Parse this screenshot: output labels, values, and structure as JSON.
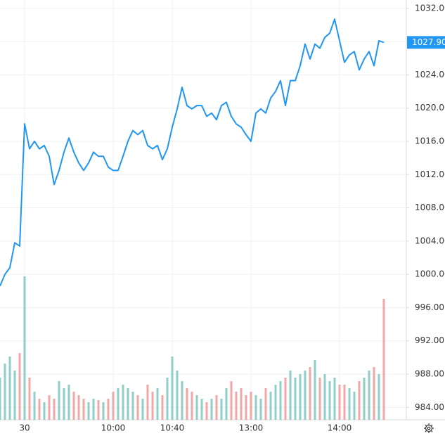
{
  "chart_data": {
    "type": "line",
    "categories": [
      null,
      null,
      null,
      null,
      null,
      "30",
      null,
      null,
      null,
      null,
      null,
      null,
      null,
      null,
      null,
      null,
      null,
      null,
      null,
      null,
      null,
      null,
      null,
      "10:00",
      null,
      null,
      null,
      null,
      null,
      null,
      null,
      null,
      null,
      null,
      null,
      "10:40",
      null,
      null,
      null,
      null,
      null,
      null,
      null,
      null,
      null,
      null,
      null,
      null,
      null,
      null,
      null,
      "13:00",
      null,
      null,
      null,
      null,
      null,
      null,
      null,
      null,
      null,
      null,
      null,
      null,
      null,
      null,
      null,
      null,
      null,
      "14:00",
      null,
      null,
      null,
      null,
      null,
      null,
      null,
      null,
      null
    ],
    "series": [
      {
        "color": "#2196f3",
        "values": [
          998.6,
          1000,
          1000.8,
          1003.8,
          1003.4,
          1018.1,
          1015.1,
          1016,
          1015.1,
          1015.5,
          1014.2,
          1010.8,
          1012.5,
          1014.7,
          1016.4,
          1014.7,
          1013.4,
          1012.5,
          1013.4,
          1014.7,
          1014.2,
          1014.2,
          1012.9,
          1012.5,
          1012.5,
          1014.2,
          1016,
          1017.3,
          1016.8,
          1017.3,
          1015.5,
          1015.1,
          1015.5,
          1013.8,
          1015.1,
          1017.7,
          1019.9,
          1022.5,
          1020.3,
          1019.9,
          1020.3,
          1020.3,
          1019,
          1019.4,
          1018.6,
          1020.3,
          1020.7,
          1019,
          1018.1,
          1017.7,
          1016.8,
          1016,
          1019.4,
          1019.9,
          1019.4,
          1021.2,
          1022,
          1023.3,
          1020.3,
          1023.3,
          1023.3,
          1025.1,
          1027.7,
          1025.9,
          1027.7,
          1027.2,
          1028.5,
          1029,
          1030.7,
          1028.1,
          1025.5,
          1026.4,
          1026.8,
          1024.6,
          1025.9,
          1026.8,
          1025.1,
          1028.1,
          1027.9
        ],
        "value_labels": {
          "78": "1027.90"
        }
      }
    ],
    "volume": [
      60,
      80,
      90,
      70,
      95,
      204,
      60,
      40,
      30,
      25,
      35,
      30,
      55,
      45,
      50,
      40,
      35,
      30,
      25,
      30,
      28,
      25,
      30,
      40,
      45,
      50,
      45,
      40,
      35,
      30,
      50,
      40,
      45,
      35,
      60,
      90,
      70,
      55,
      45,
      40,
      35,
      30,
      25,
      30,
      35,
      30,
      45,
      55,
      40,
      45,
      35,
      40,
      35,
      30,
      45,
      40,
      50,
      55,
      60,
      70,
      60,
      65,
      70,
      75,
      85,
      60,
      65,
      55,
      60,
      50,
      50,
      45,
      40,
      55,
      60,
      70,
      75,
      65,
      172
    ],
    "up_color": "#8fcfc7",
    "down_color": "#f2a7a7",
    "ylim": [
      982.5,
      1033
    ],
    "yticks": [
      {
        "value": 984,
        "label": "984.00"
      },
      {
        "value": 988,
        "label": "988.00"
      },
      {
        "value": 992,
        "label": "992.00"
      },
      {
        "value": 996,
        "label": "996.00"
      },
      {
        "value": 1000,
        "label": "1000.00"
      },
      {
        "value": 1004,
        "label": "1004.00"
      },
      {
        "value": 1008,
        "label": "1008.00"
      },
      {
        "value": 1012,
        "label": "1012.00"
      },
      {
        "value": 1016,
        "label": "1016.00"
      },
      {
        "value": 1020,
        "label": "1020.00"
      },
      {
        "value": 1024,
        "label": "1024.00"
      },
      {
        "value": 1028,
        "label": "1028.00"
      },
      {
        "value": 1032,
        "label": "1032.00"
      }
    ],
    "grid": true
  }
}
